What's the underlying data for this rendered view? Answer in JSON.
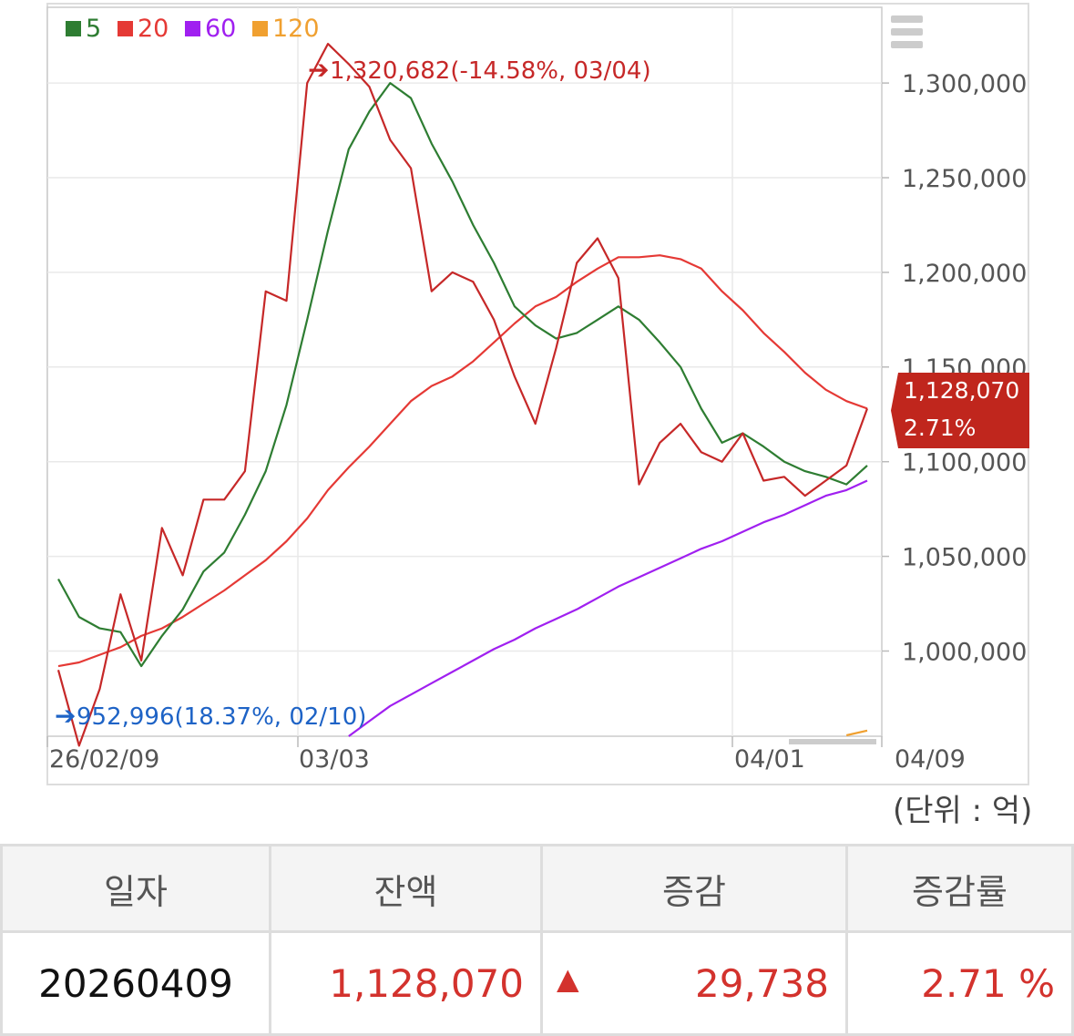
{
  "chart_data": {
    "type": "line",
    "legend": [
      {
        "label": "5",
        "color": "#2e7d32"
      },
      {
        "label": "20",
        "color": "#e53935"
      },
      {
        "label": "60",
        "color": "#a020f0"
      },
      {
        "label": "120",
        "color": "#f0a030"
      }
    ],
    "x_tick_labels": [
      "26/02/09",
      "03/03",
      "04/01",
      "04/09"
    ],
    "y_tick_labels": [
      "1,000,000",
      "1,050,000",
      "1,100,000",
      "1,150,000",
      "1,200,000",
      "1,250,000",
      "1,300,000"
    ],
    "ylim": [
      955000,
      1340000
    ],
    "series": [
      {
        "key": "daily",
        "color": "#c62828",
        "values": [
          990000,
          950000,
          980000,
          1030000,
          995000,
          1065000,
          1040000,
          1080000,
          1080000,
          1095000,
          1190000,
          1185000,
          1300000,
          1320682,
          1310000,
          1298000,
          1270000,
          1255000,
          1190000,
          1200000,
          1195000,
          1175000,
          1145000,
          1120000,
          1160000,
          1205000,
          1218000,
          1197000,
          1088000,
          1110000,
          1120000,
          1105000,
          1100000,
          1115000,
          1090000,
          1092000,
          1082000,
          1090000,
          1098000,
          1128070
        ]
      },
      {
        "color": "#2e7d32",
        "label": "5",
        "values": [
          1038000,
          1018000,
          1012000,
          1010000,
          992000,
          1008000,
          1022000,
          1042000,
          1052000,
          1072000,
          1095000,
          1130000,
          1175000,
          1222000,
          1265000,
          1285000,
          1300000,
          1292000,
          1268000,
          1248000,
          1225000,
          1205000,
          1182000,
          1172000,
          1165000,
          1168000,
          1175000,
          1182000,
          1175000,
          1163000,
          1150000,
          1128000,
          1110000,
          1115000,
          1108000,
          1100000,
          1095000,
          1092000,
          1088000,
          1098000
        ]
      },
      {
        "color": "#e53935",
        "label": "20",
        "values": [
          992000,
          994000,
          998000,
          1002000,
          1008000,
          1012000,
          1018000,
          1025000,
          1032000,
          1040000,
          1048000,
          1058000,
          1070000,
          1085000,
          1097000,
          1108000,
          1120000,
          1132000,
          1140000,
          1145000,
          1153000,
          1163000,
          1173000,
          1182000,
          1187000,
          1195000,
          1202000,
          1208000,
          1208000,
          1209000,
          1207000,
          1202000,
          1190000,
          1180000,
          1168000,
          1158000,
          1147000,
          1138000,
          1132000,
          1128070
        ]
      },
      {
        "color": "#a020f0",
        "label": "60",
        "values": [
          null,
          null,
          null,
          null,
          null,
          null,
          null,
          null,
          null,
          null,
          null,
          null,
          null,
          null,
          955000,
          963000,
          971000,
          977000,
          983000,
          989000,
          995000,
          1001000,
          1006000,
          1012000,
          1017000,
          1022000,
          1028000,
          1034000,
          1039000,
          1044000,
          1049000,
          1054000,
          1058000,
          1063000,
          1068000,
          1072000,
          1077000,
          1082000,
          1085000,
          1090000
        ]
      },
      {
        "color": "#f0a030",
        "label": "120",
        "values": [
          null,
          null,
          null,
          null,
          null,
          null,
          null,
          null,
          null,
          null,
          null,
          null,
          null,
          null,
          null,
          null,
          null,
          null,
          null,
          null,
          null,
          null,
          null,
          null,
          null,
          null,
          null,
          null,
          null,
          null,
          null,
          null,
          null,
          null,
          null,
          null,
          null,
          null,
          955500,
          958000
        ]
      }
    ],
    "annotations": {
      "max_text": "1,320,682(-14.58%, 03/04)",
      "min_text": "952,996(18.37%, 02/10)",
      "last_value": "1,128,070",
      "last_pct": "2.71%",
      "unit": "(단위 : 억)"
    }
  },
  "table": {
    "headers": [
      "일자",
      "잔액",
      "증감",
      "증감률"
    ],
    "row": {
      "date": "20260409",
      "balance": "1,128,070",
      "change": "29,738",
      "rate": "2.71 %",
      "direction": "up"
    }
  }
}
